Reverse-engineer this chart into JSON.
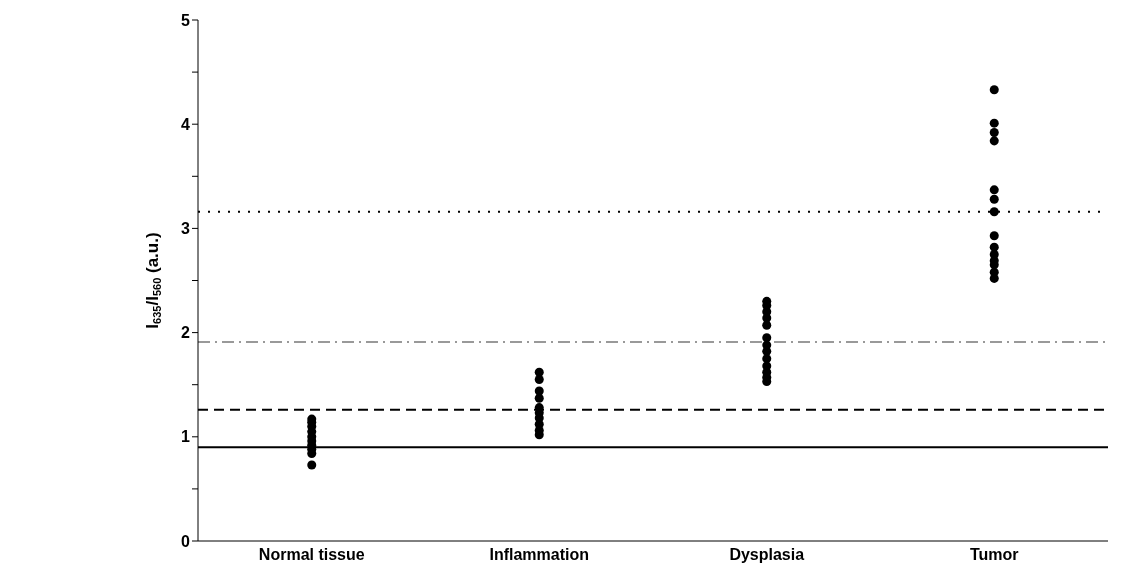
{
  "chart_data": {
    "type": "scatter",
    "ylabel": "I$_{635}$/I$_{560}$ (a.u.)",
    "categories": [
      "Normal tissue",
      "Inflammation",
      "Dysplasia",
      "Tumor"
    ],
    "series": [
      {
        "color": "#000000",
        "x": [
          "Normal tissue",
          "Normal tissue",
          "Normal tissue",
          "Normal tissue",
          "Normal tissue",
          "Normal tissue",
          "Normal tissue",
          "Normal tissue",
          "Normal tissue",
          "Normal tissue"
        ],
        "values": [
          1.17,
          1.14,
          1.1,
          1.05,
          1.0,
          0.96,
          0.92,
          0.88,
          0.84,
          0.73
        ]
      },
      {
        "color": "#000000",
        "x": [
          "Inflammation",
          "Inflammation",
          "Inflammation",
          "Inflammation",
          "Inflammation",
          "Inflammation",
          "Inflammation",
          "Inflammation",
          "Inflammation",
          "Inflammation"
        ],
        "values": [
          1.62,
          1.55,
          1.44,
          1.37,
          1.28,
          1.23,
          1.18,
          1.12,
          1.06,
          1.02
        ]
      },
      {
        "color": "#000000",
        "x": [
          "Dysplasia",
          "Dysplasia",
          "Dysplasia",
          "Dysplasia",
          "Dysplasia",
          "Dysplasia",
          "Dysplasia",
          "Dysplasia",
          "Dysplasia",
          "Dysplasia",
          "Dysplasia",
          "Dysplasia",
          "Dysplasia"
        ],
        "values": [
          2.3,
          2.26,
          2.2,
          2.14,
          2.07,
          1.95,
          1.88,
          1.82,
          1.75,
          1.68,
          1.62,
          1.57,
          1.53
        ]
      },
      {
        "color": "#000000",
        "x": [
          "Tumor",
          "Tumor",
          "Tumor",
          "Tumor",
          "Tumor",
          "Tumor",
          "Tumor",
          "Tumor",
          "Tumor",
          "Tumor",
          "Tumor",
          "Tumor",
          "Tumor",
          "Tumor"
        ],
        "values": [
          4.33,
          4.01,
          3.92,
          3.84,
          3.37,
          3.28,
          3.16,
          2.93,
          2.82,
          2.75,
          2.69,
          2.65,
          2.58,
          2.52
        ]
      }
    ],
    "ylim": [
      0,
      5
    ],
    "yticks": [
      0,
      {
        "value": 0.5,
        "label": null
      },
      1,
      {
        "value": 1.5,
        "label": null
      },
      2,
      {
        "value": 2.5,
        "label": null
      },
      3,
      {
        "value": 3.5,
        "label": null
      },
      4,
      {
        "value": 4.5,
        "label": null
      },
      5
    ],
    "ref_lines": [
      {
        "axis": "y",
        "value": 0.9,
        "color": "#000000",
        "line_style": "solid"
      },
      {
        "axis": "y",
        "value": 1.26,
        "color": "#000000",
        "line_style": "dashed"
      },
      {
        "axis": "y",
        "value": 1.91,
        "color": "#999999",
        "line_style": "dashdot"
      },
      {
        "axis": "y",
        "value": 3.16,
        "color": "#000000",
        "line_style": "dotted"
      }
    ],
    "marker": "circle",
    "grid": false,
    "legend": false
  }
}
